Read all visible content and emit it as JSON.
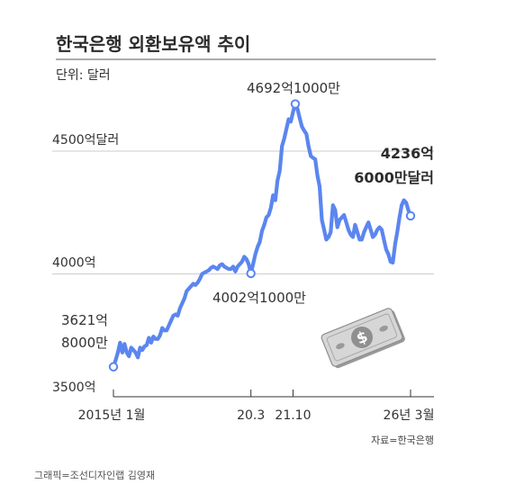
{
  "title": "한국은행 외환보유액 추이",
  "unit_label": "단위: 달러",
  "source": "자료=한국은행",
  "credit": "그래픽=조선디자인랩 김영재",
  "colors": {
    "line": "#5b86ef",
    "axis": "#333333",
    "grid": "#cccccc",
    "title_rule": "#555555"
  },
  "icon": "dollar-bill-icon",
  "chart_data": {
    "type": "line",
    "title": "한국은행 외환보유액 추이",
    "xlabel": "",
    "ylabel": "",
    "ylim": [
      3500,
      4750
    ],
    "ylim_unit": "억 달러",
    "grid": true,
    "y_gridlines": [
      {
        "value": 3500,
        "label": "3500억"
      },
      {
        "value": 4000,
        "label": "4000억"
      },
      {
        "value": 4500,
        "label": "4500억달러"
      }
    ],
    "x_ticks": [
      {
        "t": 0,
        "label": "2015년 1월"
      },
      {
        "t": 62,
        "label": "20.3"
      },
      {
        "t": 81,
        "label": "21.10"
      },
      {
        "t": 134,
        "label": "26년 3월"
      }
    ],
    "series": [
      {
        "t": [
          0,
          1,
          2,
          3,
          4,
          5,
          6,
          7,
          8,
          9,
          10,
          11,
          12,
          13,
          14,
          15,
          16,
          17,
          18,
          19,
          20,
          21,
          22,
          23,
          24,
          25,
          26,
          27,
          28,
          29,
          30,
          31,
          32,
          33,
          34,
          35,
          36,
          37,
          38,
          39,
          40,
          41,
          42,
          43,
          44,
          45,
          46,
          47,
          48,
          49,
          50,
          51,
          52,
          53,
          54,
          55,
          56,
          57,
          58,
          59,
          60,
          61,
          62,
          63,
          64,
          65,
          66,
          67,
          68,
          69,
          70,
          71,
          72,
          73,
          74,
          75,
          76,
          77,
          78,
          79,
          80,
          81,
          82,
          83,
          84,
          85,
          86,
          87,
          88,
          89,
          90,
          91,
          92,
          93,
          94,
          95,
          96,
          97,
          98,
          99,
          100,
          101,
          102,
          103,
          104,
          105,
          106,
          107,
          108,
          109,
          110,
          111,
          112,
          113,
          114,
          115,
          116,
          117,
          118,
          119,
          120,
          121,
          122,
          123,
          124,
          125,
          126,
          127,
          128,
          129,
          130,
          131,
          132,
          133,
          134
        ],
        "values": [
          3621.8,
          3650,
          3680,
          3720,
          3680,
          3715,
          3680,
          3665,
          3700,
          3690,
          3680,
          3660,
          3700,
          3690,
          3705,
          3710,
          3740,
          3720,
          3745,
          3735,
          3735,
          3750,
          3780,
          3770,
          3770,
          3790,
          3810,
          3830,
          3835,
          3830,
          3860,
          3880,
          3900,
          3930,
          3940,
          3950,
          3960,
          3955,
          3965,
          3980,
          4000,
          4005,
          4010,
          4015,
          4025,
          4030,
          4025,
          4020,
          4035,
          4040,
          4030,
          4025,
          4020,
          4020,
          4030,
          4010,
          4030,
          4040,
          4050,
          4070,
          4060,
          4040,
          4002.1,
          4040,
          4080,
          4110,
          4130,
          4175,
          4200,
          4230,
          4240,
          4270,
          4320,
          4300,
          4380,
          4420,
          4520,
          4550,
          4590,
          4630,
          4620,
          4660,
          4692.1,
          4672,
          4634,
          4600,
          4584,
          4570,
          4520,
          4480,
          4473,
          4467,
          4400,
          4356,
          4220,
          4180,
          4140,
          4150,
          4170,
          4280,
          4260,
          4190,
          4220,
          4230,
          4240,
          4210,
          4180,
          4160,
          4150,
          4200,
          4170,
          4140,
          4140,
          4170,
          4190,
          4210,
          4180,
          4150,
          4160,
          4180,
          4190,
          4180,
          4140,
          4100,
          4080,
          4050,
          4046,
          4120,
          4170,
          4230,
          4280,
          4300,
          4290,
          4260,
          4236.6
        ]
      }
    ],
    "annotations": [
      {
        "label": "3621억 8000만",
        "t": 0,
        "value": 3621.8
      },
      {
        "label": "4002억1000만",
        "t": 62,
        "value": 4002.1
      },
      {
        "label": "4692억1000만",
        "t": 82,
        "value": 4692.1
      },
      {
        "label": "4236억 6000만달러",
        "t": 134,
        "value": 4236.6
      }
    ],
    "annotation_text": {
      "start_line1": "3621억",
      "start_line2": "8000만",
      "low": "4002억1000만",
      "peak": "4692억1000만",
      "end_line1": "4236억",
      "end_line2": "6000만달러"
    }
  }
}
